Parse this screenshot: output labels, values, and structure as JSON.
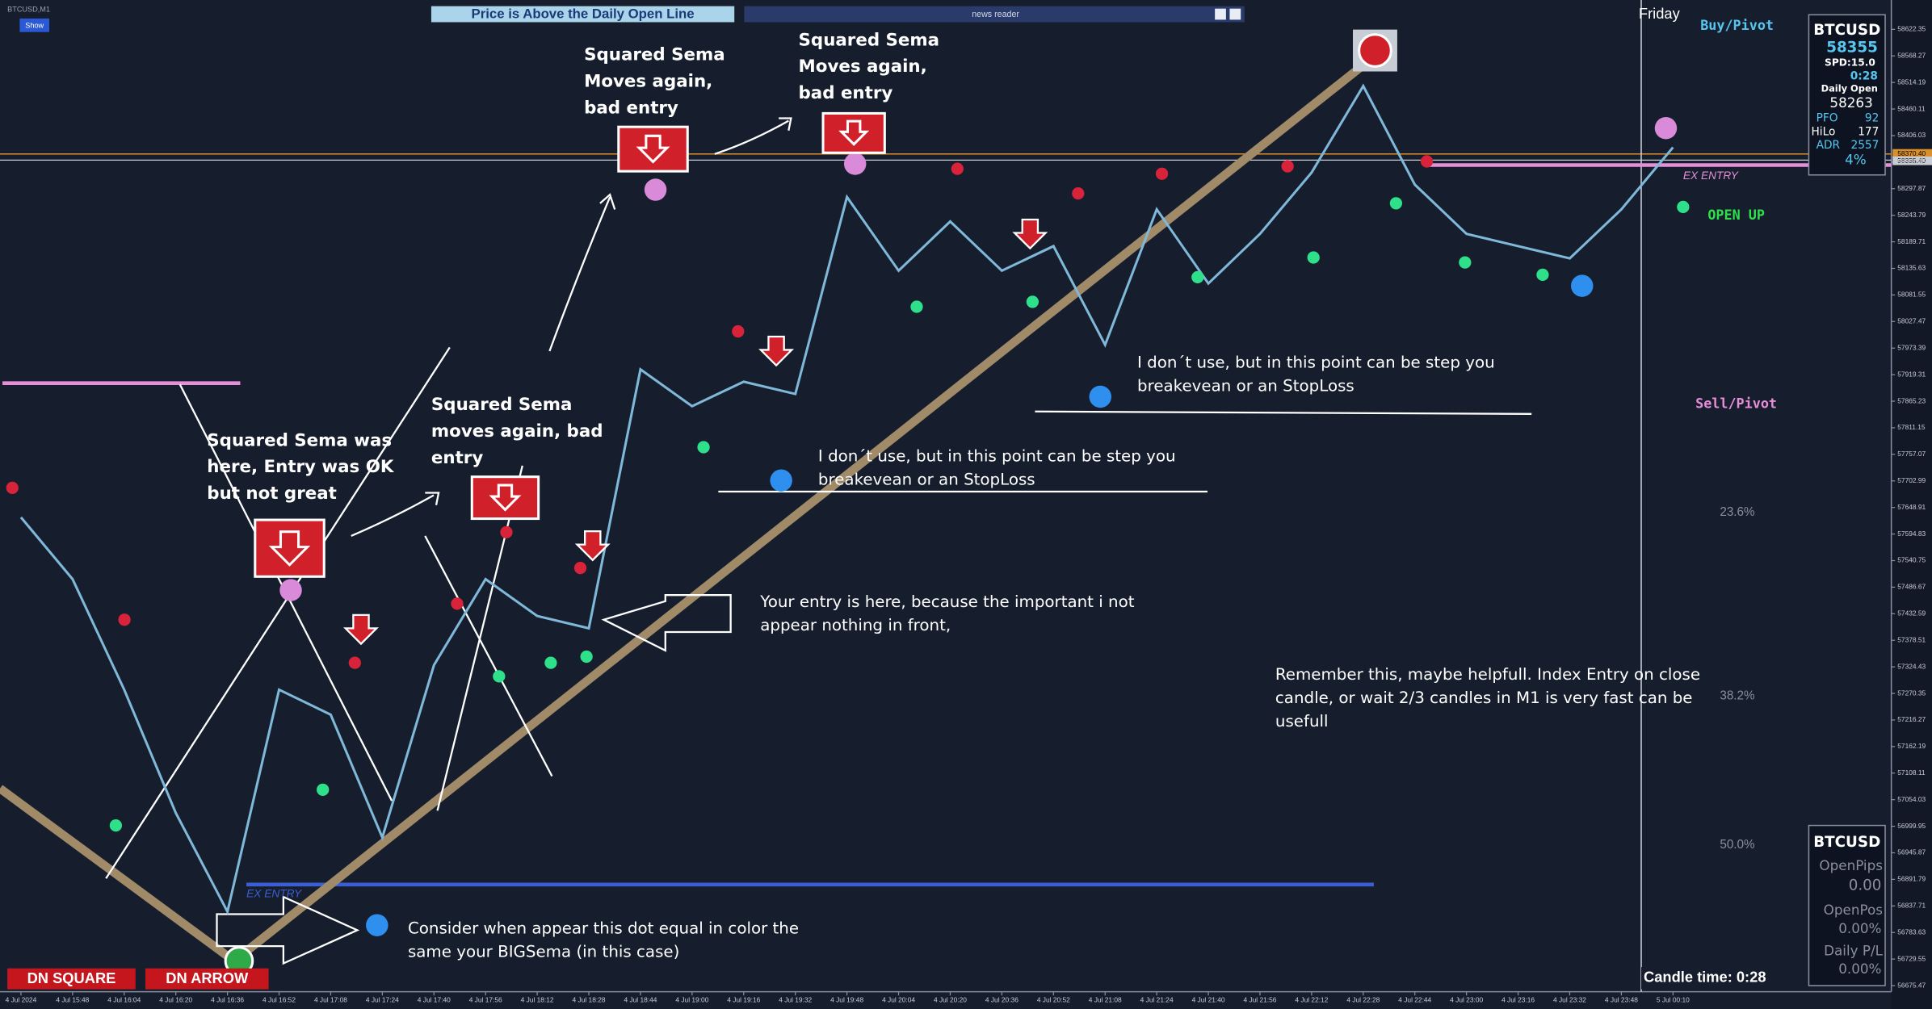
{
  "window": {
    "title": "BTCUSD,M1",
    "show_button": "Show",
    "banner": "Price is Above the Daily Open Line",
    "news_panel": "news reader",
    "day_label": "Friday"
  },
  "labels": {
    "buy_pivot": "Buy/Pivot",
    "sell_pivot": "Sell/Pivot",
    "open_up": "OPEN UP",
    "ex_entry_left": "EX ENTRY",
    "ex_entry_right": "EX ENTRY",
    "fib": [
      "23.6%",
      "38.2%",
      "50.0%"
    ],
    "dn_square": "DN SQUARE",
    "dn_arrow": "DN ARROW",
    "candle_time": "Candle time:  0:28",
    "price_tag_high": "58370.40",
    "price_tag_bid": "58355.40"
  },
  "info_panel": {
    "symbol": "BTCUSD",
    "price": "58355",
    "spread": "SPD:15.0",
    "timer": "0:28",
    "daily_open_label": "Daily Open",
    "daily_open": "58263",
    "pfo_label": "PFO",
    "pfo": "92",
    "hilo_label": "HiLo",
    "hilo": "177",
    "adr_label": "ADR",
    "adr": "2557",
    "adr_pct": "4%"
  },
  "trade_panel": {
    "symbol": "BTCUSD",
    "open_pips_label": "OpenPips",
    "open_pips": "0.00",
    "open_pos_label": "OpenPos",
    "open_pos": "0.00%",
    "daily_pl_label": "Daily P/L",
    "daily_pl": "0.00%"
  },
  "annotations": [
    {
      "lines": [
        "Squared Sema",
        "Moves again,",
        "bad entry"
      ]
    },
    {
      "lines": [
        "Squared Sema",
        "Moves again,",
        "bad entry"
      ]
    },
    {
      "lines": [
        "Squared Sema was",
        "here, Entry was OK",
        "but not great"
      ]
    },
    {
      "lines": [
        "Squared Sema",
        "moves again, bad",
        "entry"
      ]
    },
    {
      "lines": [
        "I don´t use, but in this point can be step you",
        "breakevean or an StopLoss"
      ]
    },
    {
      "lines": [
        "I don´t use, but in this point can be step you",
        "breakevean or an StopLoss"
      ]
    },
    {
      "lines": [
        "Your entry is here, because the important i not",
        "appear nothing in front,"
      ]
    },
    {
      "lines": [
        "Remember this, maybe helpfull. Index Entry on close",
        "candle, or wait 2/3 candles in M1 is very fast can be",
        "usefull"
      ]
    },
    {
      "lines": [
        "Consider when appear this dot equal in color the",
        "same your BIGSema (in this case)"
      ]
    }
  ],
  "chart_data": {
    "type": "line",
    "categories": [
      "4 Jul 2024",
      "4 Jul 15:48",
      "4 Jul 16:04",
      "4 Jul 16:20",
      "4 Jul 16:36",
      "4 Jul 16:52",
      "4 Jul 17:08",
      "4 Jul 17:24",
      "4 Jul 17:40",
      "4 Jul 17:56",
      "4 Jul 18:12",
      "4 Jul 18:28",
      "4 Jul 18:44",
      "4 Jul 19:00",
      "4 Jul 19:16",
      "4 Jul 19:32",
      "4 Jul 19:48",
      "4 Jul 20:04",
      "4 Jul 20:20",
      "4 Jul 20:36",
      "4 Jul 20:52",
      "4 Jul 21:08",
      "4 Jul 21:24",
      "4 Jul 21:40",
      "4 Jul 21:56",
      "4 Jul 22:12",
      "4 Jul 22:28",
      "4 Jul 22:44",
      "4 Jul 23:00",
      "4 Jul 23:16",
      "4 Jul 23:32",
      "4 Jul 23:48",
      "5 Jul 00:10"
    ],
    "series": [
      {
        "name": "BTCUSD",
        "color": "#7fb8d8",
        "values": [
          57629,
          57503,
          57278,
          57027,
          56826,
          57278,
          57227,
          56977,
          57328,
          57503,
          57428,
          57403,
          57930,
          57855,
          57905,
          57880,
          58281,
          58131,
          58231,
          58131,
          58181,
          57980,
          58256,
          58105,
          58206,
          58331,
          58507,
          58306,
          58206,
          58181,
          58156,
          58256,
          58382
        ]
      }
    ],
    "ylim": [
      56663,
      58672
    ],
    "yticks": [
      58622.35,
      58568.27,
      58514.19,
      58460.11,
      58406.03,
      58351.95,
      58297.87,
      58243.79,
      58189.71,
      58135.63,
      58081.55,
      58027.47,
      57973.39,
      57919.31,
      57865.23,
      57811.15,
      57757.07,
      57702.99,
      57648.91,
      57594.83,
      57540.75,
      57486.67,
      57432.59,
      57378.51,
      57324.43,
      57270.35,
      57216.27,
      57162.19,
      57108.11,
      57054.03,
      56999.95,
      56945.87,
      56891.79,
      56837.71,
      56783.63,
      56729.55,
      56675.47
    ]
  }
}
